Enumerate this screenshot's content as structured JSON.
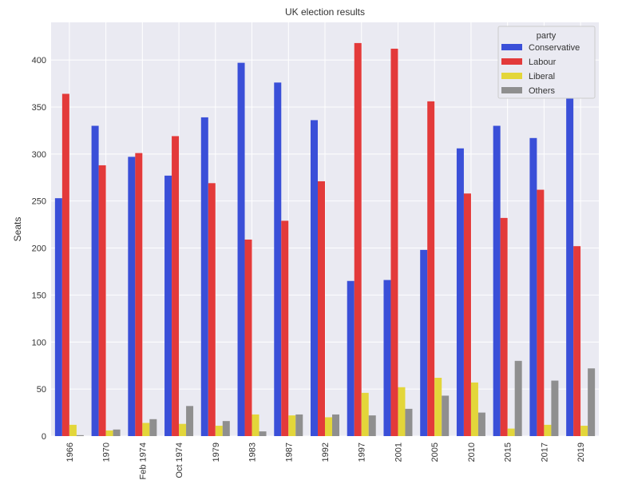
{
  "chart_data": {
    "type": "bar",
    "title": "UK election results",
    "xlabel": "",
    "ylabel": "Seats",
    "categories": [
      "1966",
      "1970",
      "Feb 1974",
      "Oct 1974",
      "1979",
      "1983",
      "1987",
      "1992",
      "1997",
      "2001",
      "2005",
      "2010",
      "2015",
      "2017",
      "2019"
    ],
    "series": [
      {
        "name": "Conservative",
        "color": "#3a4fd8",
        "values": [
          253,
          330,
          297,
          277,
          339,
          397,
          376,
          336,
          165,
          166,
          198,
          306,
          330,
          317,
          365
        ]
      },
      {
        "name": "Labour",
        "color": "#e33a3a",
        "values": [
          364,
          288,
          301,
          319,
          269,
          209,
          229,
          271,
          418,
          412,
          356,
          258,
          232,
          262,
          202
        ]
      },
      {
        "name": "Liberal",
        "color": "#e3d63a",
        "values": [
          12,
          6,
          14,
          13,
          11,
          23,
          22,
          20,
          46,
          52,
          62,
          57,
          8,
          12,
          11
        ]
      },
      {
        "name": "Others",
        "color": "#8f8f8f",
        "values": [
          1,
          7,
          18,
          32,
          16,
          5,
          23,
          23,
          22,
          29,
          43,
          25,
          80,
          59,
          72
        ]
      }
    ],
    "ylim": [
      0,
      440
    ],
    "yticks": [
      0,
      50,
      100,
      150,
      200,
      250,
      300,
      350,
      400
    ],
    "grid": true,
    "legend": {
      "title": "party",
      "placement": "top-right"
    }
  }
}
